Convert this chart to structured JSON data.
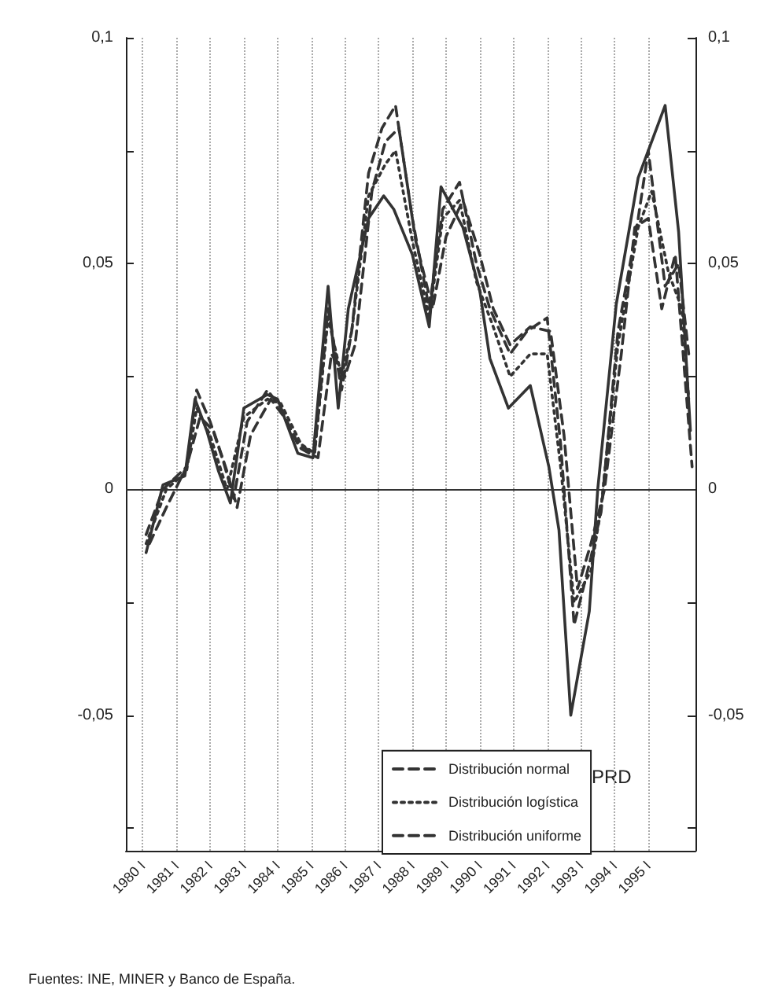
{
  "chart_data": {
    "type": "line",
    "xlim": [
      1979.5,
      1996.4
    ],
    "xticks": [
      {
        "value": 1980,
        "label": "1980 I"
      },
      {
        "value": 1981,
        "label": "1981 I"
      },
      {
        "value": 1982,
        "label": "1982 I"
      },
      {
        "value": 1983,
        "label": "1983 I"
      },
      {
        "value": 1984,
        "label": "1984 I"
      },
      {
        "value": 1985,
        "label": "1985 I"
      },
      {
        "value": 1986,
        "label": "1986 I"
      },
      {
        "value": 1987,
        "label": "1987 I"
      },
      {
        "value": 1988,
        "label": "1988 I"
      },
      {
        "value": 1989,
        "label": "1989 I"
      },
      {
        "value": 1990,
        "label": "1990 I"
      },
      {
        "value": 1991,
        "label": "1991 I"
      },
      {
        "value": 1992,
        "label": "1992 I"
      },
      {
        "value": 1993,
        "label": "1993 I"
      },
      {
        "value": 1994,
        "label": "1994 I"
      },
      {
        "value": 1995,
        "label": "1995 I"
      }
    ],
    "ylim": [
      -0.08,
      0.1
    ],
    "yticks": [
      {
        "value": -0.075,
        "label": null
      },
      {
        "value": -0.05,
        "label": "-0,05"
      },
      {
        "value": -0.025,
        "label": null
      },
      {
        "value": 0,
        "label": "0"
      },
      {
        "value": 0.025,
        "label": null
      },
      {
        "value": 0.05,
        "label": "0,05"
      },
      {
        "value": 0.075,
        "label": null
      },
      {
        "value": 0.1,
        "label": "0,1"
      }
    ],
    "y2lim": [
      -0.08,
      0.1
    ],
    "y2ticks": [
      {
        "value": -0.075,
        "label": null
      },
      {
        "value": -0.05,
        "label": "-0,05"
      },
      {
        "value": -0.025,
        "label": null
      },
      {
        "value": 0,
        "label": "0"
      },
      {
        "value": 0.025,
        "label": null
      },
      {
        "value": 0.05,
        "label": "0,05"
      },
      {
        "value": 0.075,
        "label": null
      },
      {
        "value": 0.1,
        "label": "0,1"
      }
    ],
    "grid": "x",
    "legend": "bottom",
    "ref_lines": [
      {
        "axis": "y",
        "value": 0,
        "color": "#333333"
      }
    ],
    "series": [
      {
        "color": "#333333",
        "line_style": "solid",
        "x": [
          1980.1,
          1980.6,
          1981.25,
          1981.55,
          1981.9,
          1982.25,
          1982.6,
          1983.0,
          1983.7,
          1984.0,
          1984.6,
          1985.05,
          1985.5,
          1985.8,
          1986.1,
          1986.7,
          1987.15,
          1987.45,
          1988.0,
          1988.5,
          1988.85,
          1989.5,
          1990.0,
          1990.3,
          1990.85,
          1991.5,
          1992.05,
          1992.35,
          1992.7,
          1993.25,
          1993.5,
          1994.05,
          1994.7,
          1995.5,
          1995.9,
          1996.25
        ],
        "values": [
          -0.014,
          0.001,
          0.003,
          0.02,
          0.013,
          0.004,
          -0.003,
          0.018,
          0.021,
          0.02,
          0.008,
          0.007,
          0.045,
          0.018,
          0.04,
          0.06,
          0.065,
          0.062,
          0.052,
          0.036,
          0.067,
          0.058,
          0.044,
          0.029,
          0.018,
          0.023,
          0.005,
          -0.009,
          -0.05,
          -0.027,
          0.0,
          0.041,
          0.069,
          0.085,
          0.057,
          0.013
        ]
      },
      {
        "name": "Distribución normal",
        "color": "#333333",
        "line_style": "dashed",
        "x": [
          1980.1,
          1980.6,
          1981.3,
          1981.6,
          1982.0,
          1982.4,
          1982.7,
          1983.1,
          1983.7,
          1984.1,
          1984.6,
          1985.1,
          1985.5,
          1985.9,
          1986.2,
          1986.7,
          1987.1,
          1987.5,
          1988.0,
          1988.5,
          1988.9,
          1989.4,
          1989.9,
          1990.3,
          1990.9,
          1991.4,
          1992.0,
          1992.4,
          1992.8,
          1993.3,
          1993.6,
          1994.1,
          1994.7,
          1995.0,
          1995.5,
          1995.9,
          1996.2
        ],
        "values": [
          -0.01,
          0.0,
          0.005,
          0.022,
          0.015,
          0.006,
          -0.002,
          0.015,
          0.022,
          0.018,
          0.01,
          0.008,
          0.04,
          0.022,
          0.035,
          0.07,
          0.08,
          0.085,
          0.06,
          0.04,
          0.062,
          0.068,
          0.05,
          0.04,
          0.03,
          0.035,
          0.038,
          0.01,
          -0.03,
          -0.015,
          -0.005,
          0.035,
          0.06,
          0.075,
          0.045,
          0.05,
          0.03
        ]
      },
      {
        "name": "Distribución logística",
        "color": "#333333",
        "line_style": "dotted",
        "x": [
          1980.1,
          1980.7,
          1981.3,
          1981.6,
          1982.0,
          1982.5,
          1983.0,
          1983.7,
          1984.1,
          1984.7,
          1985.1,
          1985.5,
          1985.9,
          1986.2,
          1986.7,
          1987.2,
          1987.5,
          1988.0,
          1988.5,
          1988.9,
          1989.4,
          1989.9,
          1990.4,
          1990.9,
          1991.5,
          1992.0,
          1992.4,
          1992.8,
          1993.3,
          1993.6,
          1994.1,
          1994.7,
          1995.1,
          1995.6,
          1996.0,
          1996.2
        ],
        "values": [
          -0.012,
          0.0,
          0.004,
          0.018,
          0.012,
          0.0,
          0.016,
          0.02,
          0.019,
          0.01,
          0.008,
          0.038,
          0.025,
          0.035,
          0.065,
          0.072,
          0.075,
          0.055,
          0.038,
          0.06,
          0.064,
          0.046,
          0.036,
          0.025,
          0.03,
          0.03,
          0.005,
          -0.025,
          -0.018,
          -0.004,
          0.032,
          0.058,
          0.066,
          0.048,
          0.04,
          0.02
        ]
      },
      {
        "name": "Distribución uniforme",
        "color": "#333333",
        "line_style": "dashed",
        "x": [
          1980.2,
          1980.7,
          1981.3,
          1981.7,
          1982.1,
          1982.5,
          1982.8,
          1983.2,
          1983.8,
          1984.2,
          1984.7,
          1985.2,
          1985.6,
          1986.0,
          1986.3,
          1986.8,
          1987.2,
          1987.6,
          1988.1,
          1988.6,
          1989.0,
          1989.5,
          1990.0,
          1990.4,
          1990.9,
          1991.5,
          1992.1,
          1992.5,
          1992.9,
          1993.3,
          1993.7,
          1994.2,
          1994.6,
          1995.0,
          1995.4,
          1995.8,
          1996.3
        ],
        "values": [
          -0.012,
          -0.004,
          0.005,
          0.016,
          0.013,
          0.004,
          -0.004,
          0.012,
          0.02,
          0.016,
          0.009,
          0.007,
          0.03,
          0.025,
          0.032,
          0.066,
          0.077,
          0.08,
          0.055,
          0.04,
          0.056,
          0.064,
          0.052,
          0.04,
          0.032,
          0.036,
          0.035,
          0.012,
          -0.022,
          -0.012,
          0.0,
          0.03,
          0.058,
          0.06,
          0.04,
          0.052,
          0.005
        ]
      }
    ],
    "annotations": [
      "PRD",
      "Fuentes: INE, MINER y Banco de España."
    ]
  }
}
